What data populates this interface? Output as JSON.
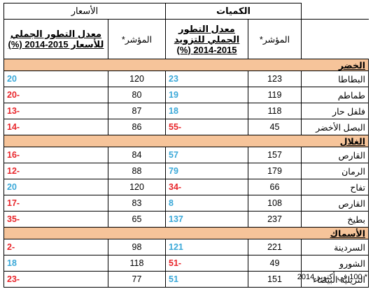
{
  "headers": {
    "quantities": "الكميات",
    "prices": "الأسعار",
    "index_label": "المؤشر*",
    "supply_change": "معدل التطور الجملي للتزويد 2015-2014 (%)",
    "price_change": "معدل التطور الجملي للأسعار 2015-2014 (%)"
  },
  "sections": [
    {
      "title": "الخضر",
      "rows": [
        {
          "name": "البطاطا",
          "q_index": "123",
          "q_change": "23",
          "p_index": "120",
          "p_change": "20"
        },
        {
          "name": "طماطم",
          "q_index": "119",
          "q_change": "19",
          "p_index": "80",
          "p_change": "-20"
        },
        {
          "name": "فلفل حار",
          "q_index": "118",
          "q_change": "18",
          "p_index": "87",
          "p_change": "-13"
        },
        {
          "name": "البصل الأخضر",
          "q_index": "45",
          "q_change": "-55",
          "p_index": "86",
          "p_change": "-14"
        }
      ]
    },
    {
      "title": "الغلال",
      "rows": [
        {
          "name": "القارص",
          "q_index": "157",
          "q_change": "57",
          "p_index": "84",
          "p_change": "-16"
        },
        {
          "name": "الرمان",
          "q_index": "179",
          "q_change": "79",
          "p_index": "88",
          "p_change": "-12"
        },
        {
          "name": "تفاح",
          "q_index": "66",
          "q_change": "-34",
          "p_index": "120",
          "p_change": "20"
        },
        {
          "name": "القارص",
          "q_index": "108",
          "q_change": "8",
          "p_index": "83",
          "p_change": "-17"
        },
        {
          "name": "بطيخ",
          "q_index": "237",
          "q_change": "137",
          "p_index": "65",
          "p_change": "-35"
        }
      ]
    },
    {
      "title": "الأسماك",
      "rows": [
        {
          "name": "السردينة",
          "q_index": "221",
          "q_change": "121",
          "p_index": "98",
          "p_change": "-2"
        },
        {
          "name": "الشورو",
          "q_index": "49",
          "q_change": "-51",
          "p_index": "118",
          "p_change": "18"
        },
        {
          "name": "التريلية البيضاء",
          "q_index": "151",
          "q_change": "51",
          "p_index": "77",
          "p_change": "-23"
        }
      ]
    }
  ],
  "footnote": "* 100 في أكتوبر 2014",
  "colors": {
    "positive": "#3aa8d8",
    "negative": "#e8262b",
    "section_bg": "#f6c49a"
  }
}
